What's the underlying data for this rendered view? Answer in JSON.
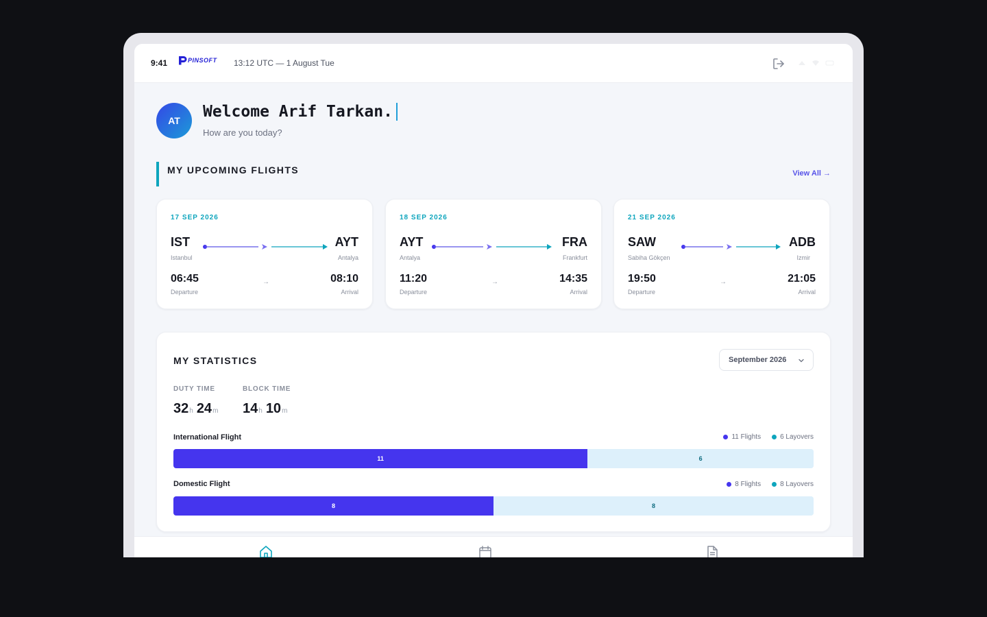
{
  "status_bar": {
    "time": "9:41",
    "brand": "PINSOFT",
    "utc_datetime": "13:12 UTC — 1 August Tue"
  },
  "welcome": {
    "initials": "AT",
    "greeting": "Welcome Arif Tarkan.",
    "subtitle": "How are you today?"
  },
  "upcoming": {
    "title": "MY UPCOMING FLIGHTS",
    "view_all": "View All →",
    "flights": [
      {
        "date": "17 SEP 2026",
        "from_code": "IST",
        "from_city": "Istanbul",
        "to_code": "AYT",
        "to_city": "Antalya",
        "dep_time": "06:45",
        "arr_time": "08:10",
        "dep_label": "Departure",
        "arr_label": "Arrival"
      },
      {
        "date": "18 SEP 2026",
        "from_code": "AYT",
        "from_city": "Antalya",
        "to_code": "FRA",
        "to_city": "Frankfurt",
        "dep_time": "11:20",
        "arr_time": "14:35",
        "dep_label": "Departure",
        "arr_label": "Arrival"
      },
      {
        "date": "21 SEP 2026",
        "from_code": "SAW",
        "from_city": "Sabiha Gökçen",
        "to_code": "ADB",
        "to_city": "Izmir",
        "dep_time": "19:50",
        "arr_time": "21:05",
        "dep_label": "Departure",
        "arr_label": "Arrival"
      }
    ]
  },
  "stats": {
    "title": "MY STATISTICS",
    "month": "September 2026",
    "duty_label": "DUTY TIME",
    "duty_h": "32",
    "duty_m": "24",
    "block_label": "BLOCK TIME",
    "block_h": "14",
    "block_m": "10",
    "hour_unit": "h",
    "min_unit": "m",
    "rows": [
      {
        "label": "International Flight",
        "flights": 11,
        "layovers": 6,
        "flights_legend": "11 Flights",
        "layovers_legend": "6 Layovers",
        "flights_text": "11",
        "layovers_text": "6"
      },
      {
        "label": "Domestic Flight",
        "flights": 8,
        "layovers": 8,
        "flights_legend": "8 Flights",
        "layovers_legend": "8 Layovers",
        "flights_text": "8",
        "layovers_text": "8"
      }
    ]
  },
  "colors": {
    "accent_teal": "#0ea5bd",
    "accent_purple": "#4535ee",
    "layover_bg": "#ddf0fb"
  },
  "icons": {
    "logout": "logout-icon",
    "home": "home-icon",
    "calendar": "calendar-icon",
    "document": "document-icon"
  }
}
